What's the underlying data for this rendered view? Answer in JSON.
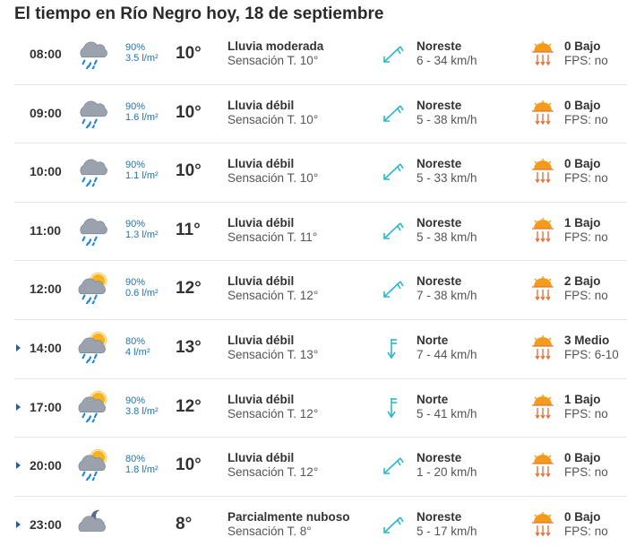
{
  "page": {
    "title": "El tiempo en Río Negro hoy, 18 de septiembre"
  },
  "colors": {
    "precip_text": "#1a75b8",
    "wind_icon": "#2bb7c8",
    "sun": "#f59b1c",
    "uv_arrows": "#e2733a",
    "cloud": "#9aa3ad",
    "rain": "#1f86d6"
  },
  "rows": [
    {
      "time": "08:00",
      "expandable": false,
      "icon": "cloud-rain-icon",
      "prob": "90%",
      "amount": "3.5 l/m²",
      "temp": "10°",
      "desc": "Lluvia moderada",
      "feel": "Sensación T. 10°",
      "wind_icon": "wind-northeast-icon",
      "wind_dir": "Noreste",
      "wind_speed": "6 - 34 km/h",
      "uv": "0 Bajo",
      "fps": "FPS: no"
    },
    {
      "time": "09:00",
      "expandable": false,
      "icon": "cloud-rain-icon",
      "prob": "90%",
      "amount": "1.6 l/m²",
      "temp": "10°",
      "desc": "Lluvia débil",
      "feel": "Sensación T. 10°",
      "wind_icon": "wind-northeast-icon",
      "wind_dir": "Noreste",
      "wind_speed": "5 - 38 km/h",
      "uv": "0 Bajo",
      "fps": "FPS: no"
    },
    {
      "time": "10:00",
      "expandable": false,
      "icon": "cloud-rain-icon",
      "prob": "90%",
      "amount": "1.1 l/m²",
      "temp": "10°",
      "desc": "Lluvia débil",
      "feel": "Sensación T. 10°",
      "wind_icon": "wind-northeast-icon",
      "wind_dir": "Noreste",
      "wind_speed": "5 - 33 km/h",
      "uv": "0 Bajo",
      "fps": "FPS: no"
    },
    {
      "time": "11:00",
      "expandable": false,
      "icon": "cloud-rain-icon",
      "prob": "90%",
      "amount": "1.3 l/m²",
      "temp": "11°",
      "desc": "Lluvia débil",
      "feel": "Sensación T. 11°",
      "wind_icon": "wind-northeast-icon",
      "wind_dir": "Noreste",
      "wind_speed": "5 - 38 km/h",
      "uv": "1 Bajo",
      "fps": "FPS: no"
    },
    {
      "time": "12:00",
      "expandable": false,
      "icon": "sun-cloud-rain-icon",
      "prob": "90%",
      "amount": "0.6 l/m²",
      "temp": "12°",
      "desc": "Lluvia débil",
      "feel": "Sensación T. 12°",
      "wind_icon": "wind-northeast-icon",
      "wind_dir": "Noreste",
      "wind_speed": "7 - 38 km/h",
      "uv": "2 Bajo",
      "fps": "FPS: no"
    },
    {
      "time": "14:00",
      "expandable": true,
      "icon": "sun-cloud-rain-icon",
      "prob": "80%",
      "amount": "4 l/m²",
      "temp": "13°",
      "desc": "Lluvia débil",
      "feel": "Sensación T. 13°",
      "wind_icon": "wind-north-icon",
      "wind_dir": "Norte",
      "wind_speed": "7 - 44 km/h",
      "uv": "3 Medio",
      "fps": "FPS: 6-10"
    },
    {
      "time": "17:00",
      "expandable": true,
      "icon": "sun-cloud-rain-icon",
      "prob": "90%",
      "amount": "3.8 l/m²",
      "temp": "12°",
      "desc": "Lluvia débil",
      "feel": "Sensación T. 12°",
      "wind_icon": "wind-north-icon",
      "wind_dir": "Norte",
      "wind_speed": "5 - 41 km/h",
      "uv": "1 Bajo",
      "fps": "FPS: no"
    },
    {
      "time": "20:00",
      "expandable": true,
      "icon": "sun-cloud-rain-icon",
      "prob": "80%",
      "amount": "1.8 l/m²",
      "temp": "10°",
      "desc": "Lluvia débil",
      "feel": "Sensación T. 12°",
      "wind_icon": "wind-northeast-icon",
      "wind_dir": "Noreste",
      "wind_speed": "1 - 20 km/h",
      "uv": "0 Bajo",
      "fps": "FPS: no"
    },
    {
      "time": "23:00",
      "expandable": true,
      "icon": "moon-cloud-icon",
      "prob": "",
      "amount": "",
      "temp": "8°",
      "desc": "Parcialmente nuboso",
      "feel": "Sensación T. 8°",
      "wind_icon": "wind-northeast-icon",
      "wind_dir": "Noreste",
      "wind_speed": "5 - 17 km/h",
      "uv": "0 Bajo",
      "fps": "FPS: no"
    }
  ]
}
